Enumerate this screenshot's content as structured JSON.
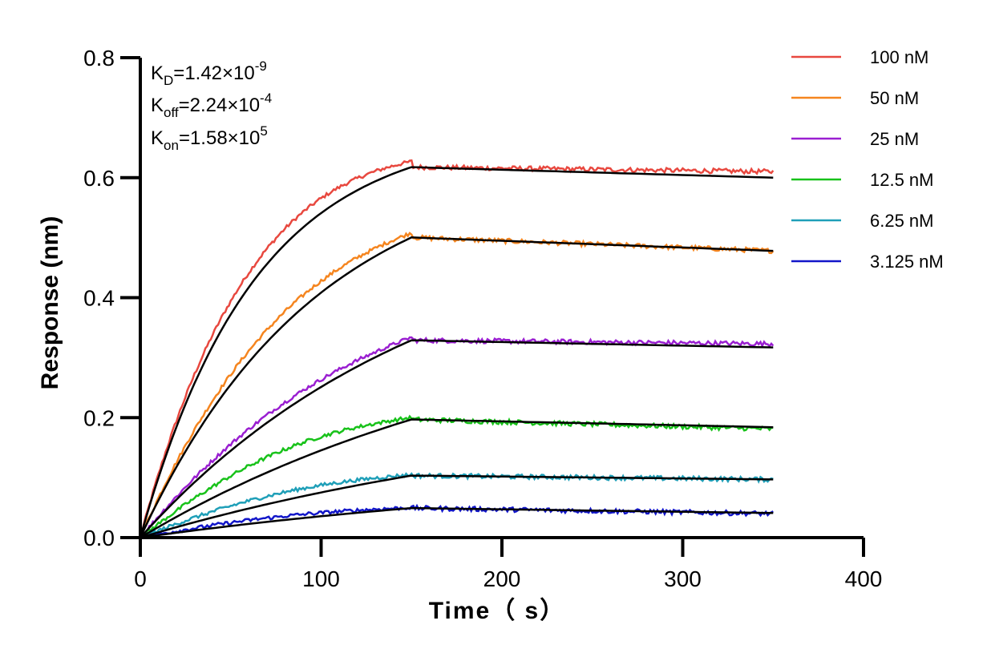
{
  "chart_data": {
    "type": "line",
    "xlabel": "Time（ s）",
    "ylabel": "Response (nm)",
    "xlim": [
      0,
      400
    ],
    "ylim": [
      0,
      0.8
    ],
    "xticks": [
      "0",
      "100",
      "200",
      "300",
      "400"
    ],
    "yticks": [
      "0.0",
      "0.2",
      "0.4",
      "0.6",
      "0.8"
    ],
    "xtick_values": [
      0,
      100,
      200,
      300,
      400
    ],
    "ytick_values": [
      0,
      0.2,
      0.4,
      0.6,
      0.8
    ],
    "grid": false,
    "legend_position": "top-right",
    "annotations": {
      "kd": {
        "label": "K",
        "sub": "D",
        "value": "=1.42×10",
        "exp": "-9"
      },
      "koff": {
        "label": "K",
        "sub": "off",
        "value": "=2.24×10",
        "exp": "-4"
      },
      "kon": {
        "label": "K",
        "sub": "on",
        "value": "=1.58×10",
        "exp": "5"
      }
    },
    "x_end": 350,
    "assoc_end": 150,
    "series": [
      {
        "name": "100 nM",
        "color": "#e8483f",
        "plateau": 0.627,
        "k": 0.0158,
        "final": 0.61,
        "fit_end": 0.6
      },
      {
        "name": "50 nM",
        "color": "#f5851f",
        "plateau": 0.508,
        "k": 0.0102,
        "final": 0.478,
        "fit_end": 0.478
      },
      {
        "name": "25 nM",
        "color": "#9a1fd1",
        "plateau": 0.334,
        "k": 0.0062,
        "final": 0.323,
        "fit_end": 0.317
      },
      {
        "name": "12.5 nM",
        "color": "#18c21a",
        "plateau": 0.2,
        "k": 0.0045,
        "final": 0.181,
        "fit_end": 0.184
      },
      {
        "name": "6.25 nM",
        "color": "#1f9fb8",
        "plateau": 0.105,
        "k": 0.0038,
        "final": 0.097,
        "fit_end": 0.097
      },
      {
        "name": "3.125 nM",
        "color": "#1216c9",
        "plateau": 0.05,
        "k": 0.0035,
        "final": 0.04,
        "fit_end": 0.041
      }
    ]
  }
}
